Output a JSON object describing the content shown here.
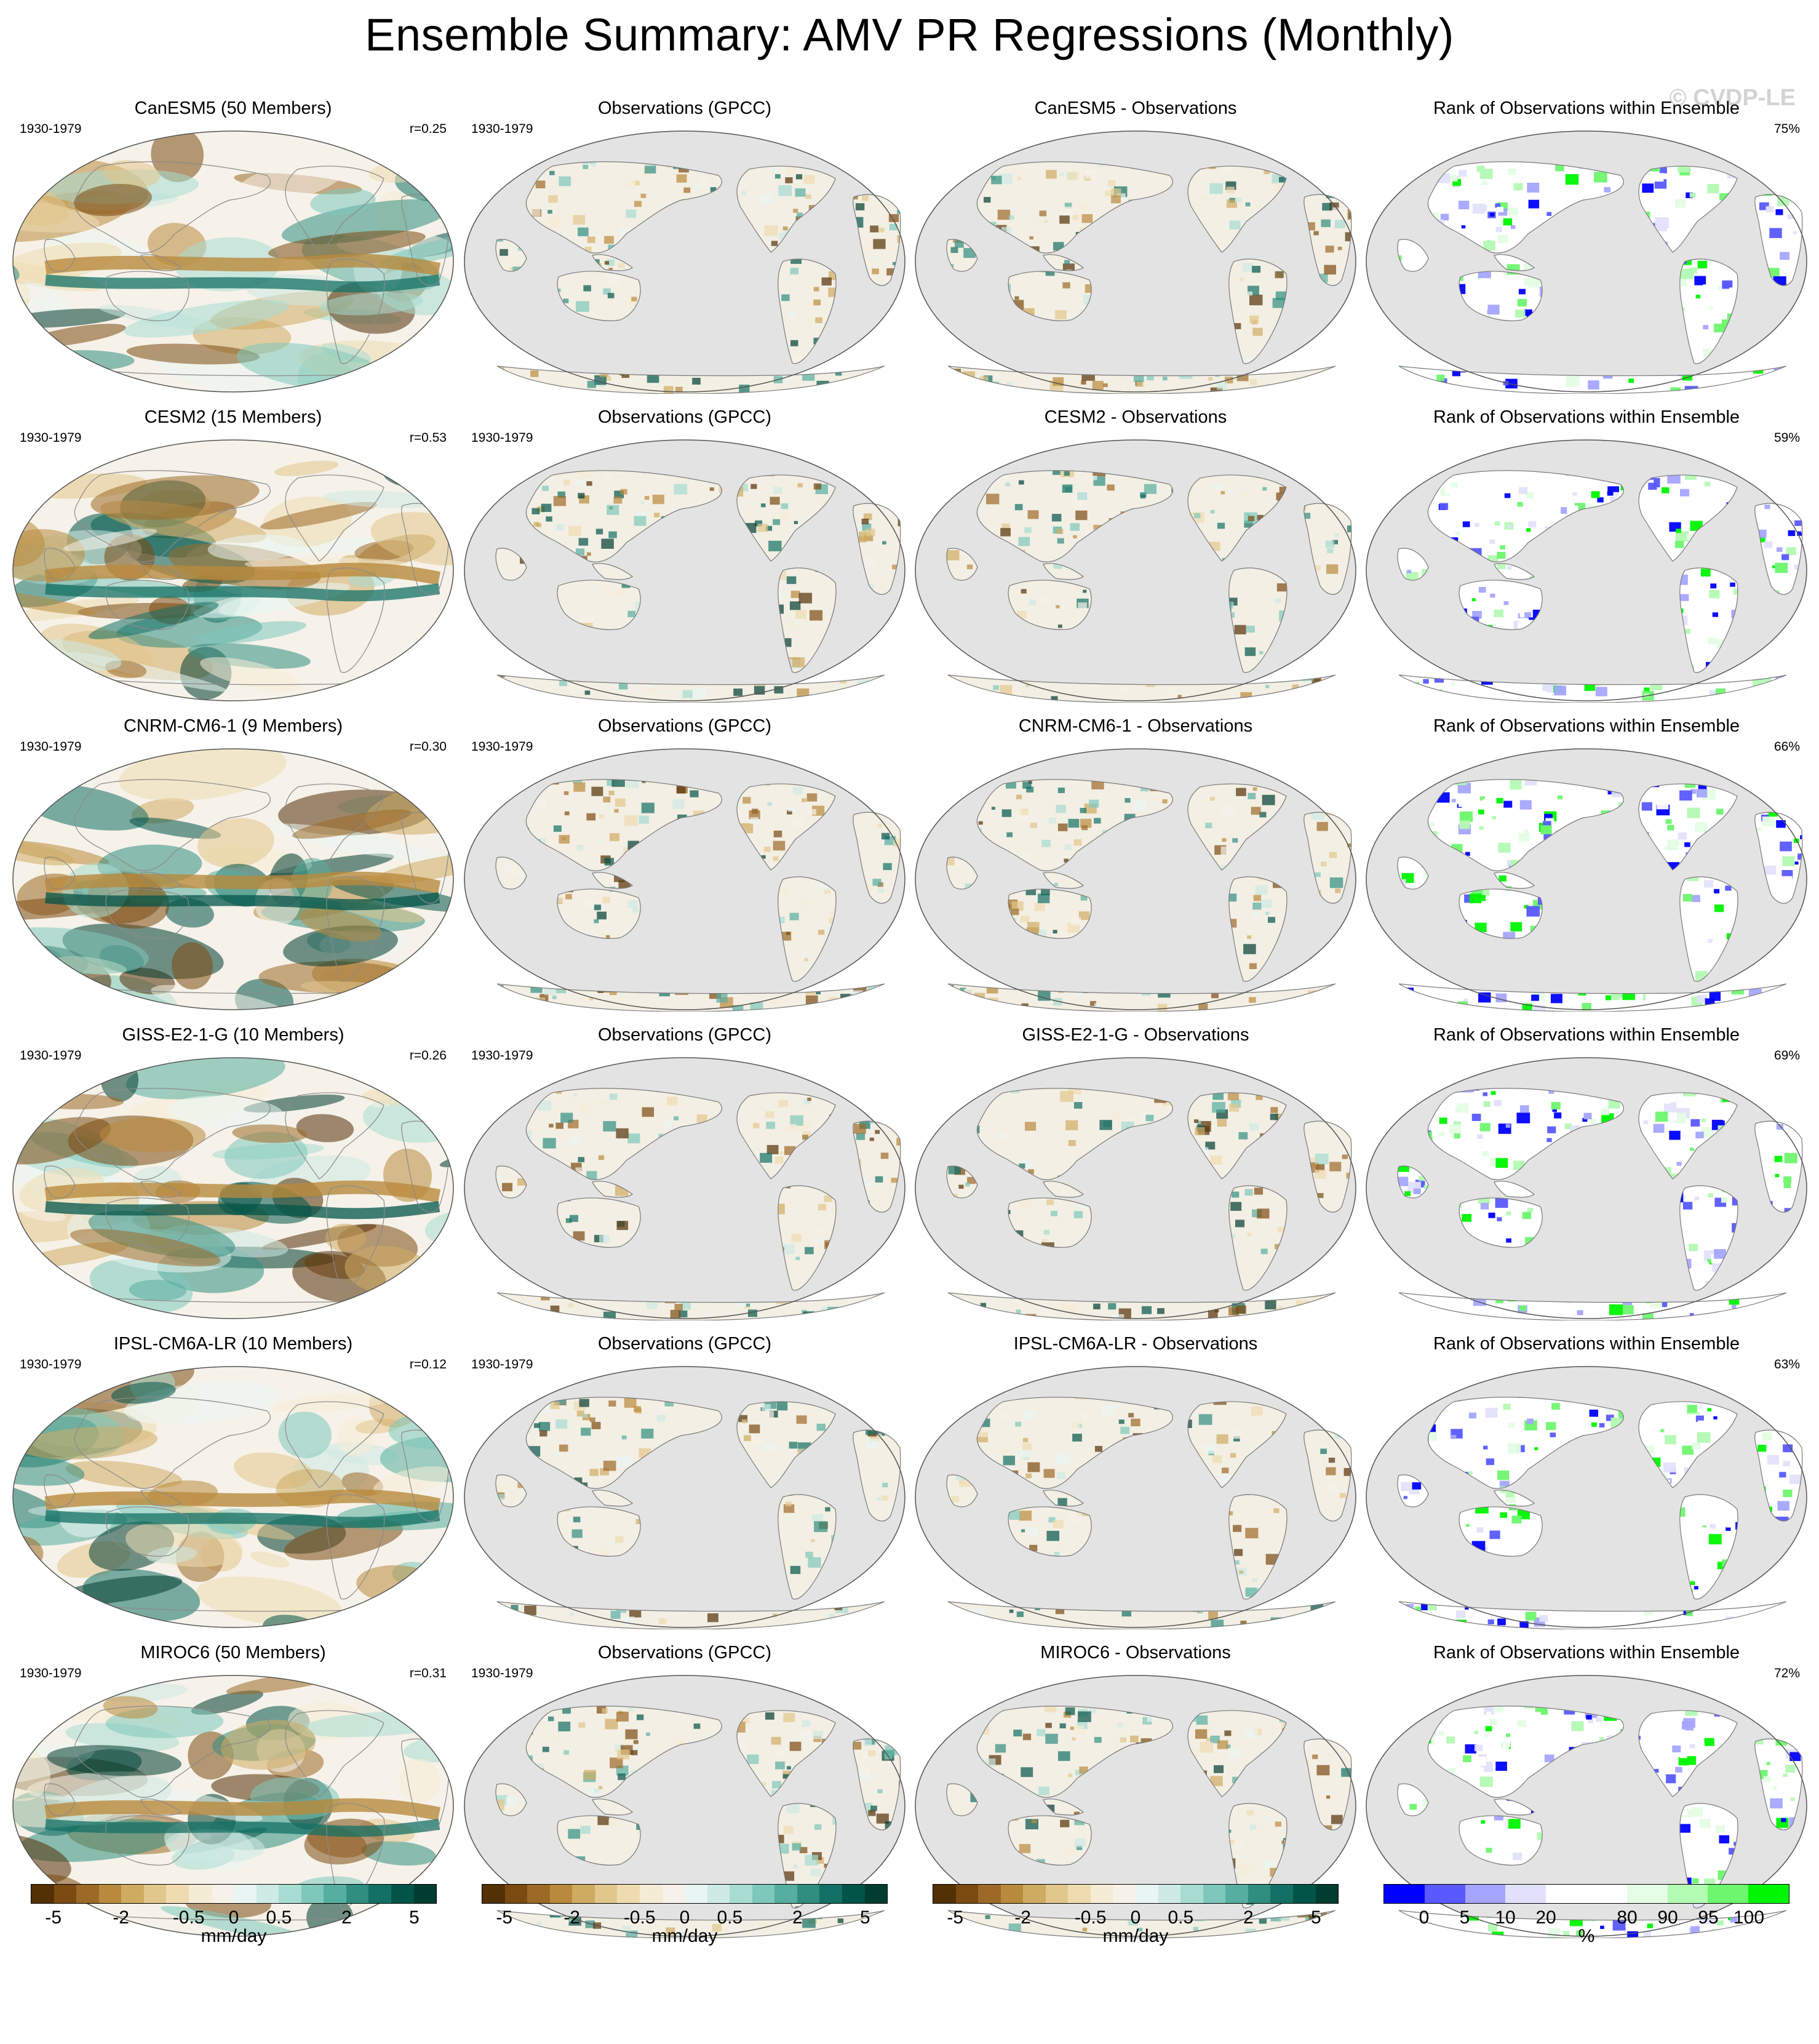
{
  "title": "Ensemble Summary: AMV PR Regressions (Monthly)",
  "watermark": "© CVDP-LE",
  "colors": {
    "ocean_gray": "#e3e3e3",
    "diverging": [
      "#543005",
      "#7b4a11",
      "#9c6a26",
      "#b98a3c",
      "#cfab62",
      "#e1c78b",
      "#eedcb0",
      "#f5ecd6",
      "#f6f2e9",
      "#e9f5f2",
      "#cdeae4",
      "#a7dcd2",
      "#7ec8bb",
      "#55ae9f",
      "#2f8e80",
      "#137064",
      "#015448",
      "#003c30"
    ],
    "rank": [
      "#0000ff",
      "#5959ff",
      "#a5a5ff",
      "#e1e1fb",
      "#ffffff",
      "#ffffff",
      "#e4fde4",
      "#b3fab3",
      "#6ef66e",
      "#00f500"
    ]
  },
  "rows": [
    {
      "model_title": "CanESM5 (50 Members)",
      "period": "1930-1979",
      "r": "r=0.25",
      "obs_title": "Observations (GPCC)",
      "obs_period": "1930-1979",
      "diff_title": "CanESM5 - Observations",
      "rank_title": "Rank of Observations within Ensemble",
      "rank_pct": "75%"
    },
    {
      "model_title": "CESM2 (15 Members)",
      "period": "1930-1979",
      "r": "r=0.53",
      "obs_title": "Observations (GPCC)",
      "obs_period": "1930-1979",
      "diff_title": "CESM2 - Observations",
      "rank_title": "Rank of Observations within Ensemble",
      "rank_pct": "59%"
    },
    {
      "model_title": "CNRM-CM6-1 (9 Members)",
      "period": "1930-1979",
      "r": "r=0.30",
      "obs_title": "Observations (GPCC)",
      "obs_period": "1930-1979",
      "diff_title": "CNRM-CM6-1 - Observations",
      "rank_title": "Rank of Observations within Ensemble",
      "rank_pct": "66%"
    },
    {
      "model_title": "GISS-E2-1-G (10 Members)",
      "period": "1930-1979",
      "r": "r=0.26",
      "obs_title": "Observations (GPCC)",
      "obs_period": "1930-1979",
      "diff_title": "GISS-E2-1-G - Observations",
      "rank_title": "Rank of Observations within Ensemble",
      "rank_pct": "69%"
    },
    {
      "model_title": "IPSL-CM6A-LR (10 Members)",
      "period": "1930-1979",
      "r": "r=0.12",
      "obs_title": "Observations (GPCC)",
      "obs_period": "1930-1979",
      "diff_title": "IPSL-CM6A-LR - Observations",
      "rank_title": "Rank of Observations within Ensemble",
      "rank_pct": "63%"
    },
    {
      "model_title": "MIROC6 (50 Members)",
      "period": "1930-1979",
      "r": "r=0.31",
      "obs_title": "Observations (GPCC)",
      "obs_period": "1930-1979",
      "diff_title": "MIROC6 - Observations",
      "rank_title": "Rank of Observations within Ensemble",
      "rank_pct": "72%"
    }
  ],
  "colorbars": [
    {
      "ticks": [
        "-5",
        "-2",
        "-0.5",
        "0",
        "0.5",
        "2",
        "5"
      ],
      "unit": "mm/day"
    },
    {
      "ticks": [
        "-5",
        "-2",
        "-0.5",
        "0",
        "0.5",
        "2",
        "5"
      ],
      "unit": "mm/day"
    },
    {
      "ticks": [
        "-5",
        "-2",
        "-0.5",
        "0",
        "0.5",
        "2",
        "5"
      ],
      "unit": "mm/day"
    },
    {
      "ticks": [
        "0",
        "5",
        "10",
        "20",
        "80",
        "90",
        "95",
        "100"
      ],
      "unit": "%"
    }
  ]
}
